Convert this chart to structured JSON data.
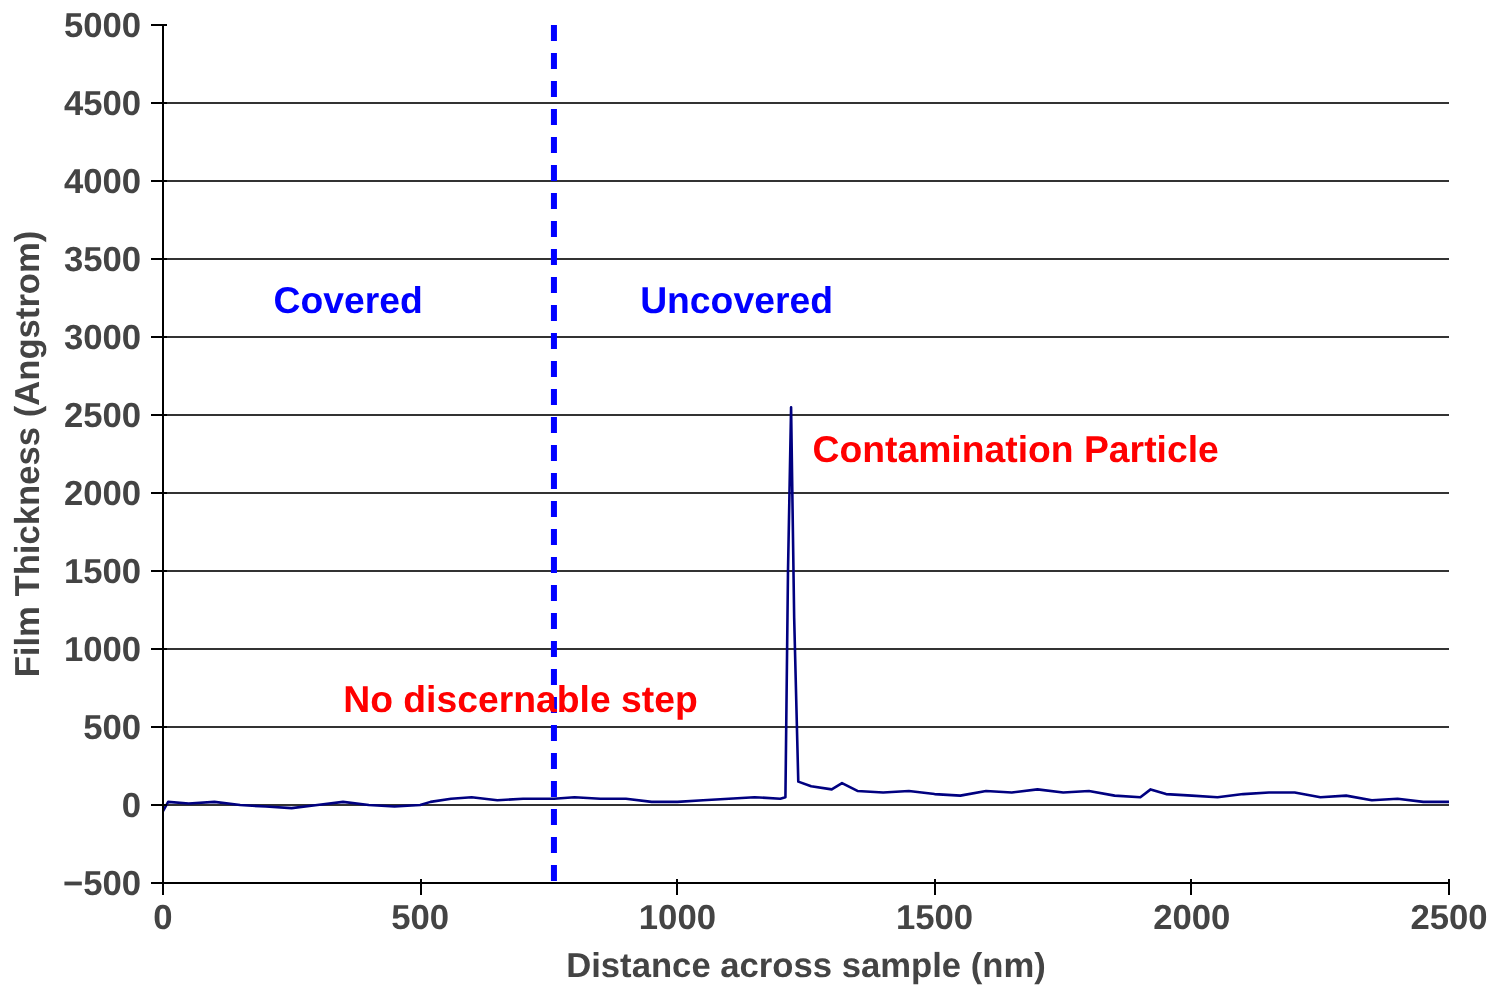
{
  "chart_data": {
    "type": "line",
    "xlabel": "Distance across sample (nm)",
    "ylabel": "Film Thickness (Angstrom)",
    "xlim": [
      0,
      2500
    ],
    "ylim": [
      -500,
      5000
    ],
    "xticks": [
      0,
      500,
      1000,
      1500,
      2000,
      2500
    ],
    "yticks": [
      -500,
      0,
      500,
      1000,
      1500,
      2000,
      2500,
      3000,
      3500,
      4000,
      4500,
      5000
    ],
    "grid": "y",
    "marker": "none",
    "line_style": "solid",
    "series": [
      {
        "color": "#000080",
        "x": [
          0,
          10,
          50,
          100,
          150,
          200,
          250,
          300,
          350,
          400,
          450,
          500,
          520,
          560,
          600,
          650,
          700,
          760,
          800,
          850,
          900,
          950,
          1000,
          1050,
          1100,
          1150,
          1200,
          1210,
          1215,
          1221,
          1227,
          1235,
          1260,
          1300,
          1320,
          1350,
          1400,
          1450,
          1500,
          1550,
          1600,
          1650,
          1700,
          1750,
          1800,
          1850,
          1900,
          1920,
          1950,
          2000,
          2050,
          2100,
          2150,
          2200,
          2250,
          2300,
          2350,
          2400,
          2450,
          2500
        ],
        "values": [
          -40,
          20,
          10,
          20,
          0,
          -10,
          -20,
          0,
          20,
          0,
          -10,
          0,
          20,
          40,
          50,
          30,
          40,
          40,
          50,
          40,
          40,
          20,
          20,
          30,
          40,
          50,
          40,
          50,
          1500,
          2550,
          1200,
          150,
          120,
          100,
          140,
          90,
          80,
          90,
          70,
          60,
          90,
          80,
          100,
          80,
          90,
          60,
          50,
          100,
          70,
          60,
          50,
          70,
          80,
          80,
          50,
          60,
          30,
          40,
          20,
          20
        ]
      }
    ],
    "ref_lines": [
      {
        "axis": "x",
        "value": 760,
        "color": "#0000ff",
        "line_style": "dashed"
      }
    ],
    "annotations": [
      "Covered",
      "Uncovered",
      "Contamination Particle",
      "No discernable step"
    ]
  }
}
